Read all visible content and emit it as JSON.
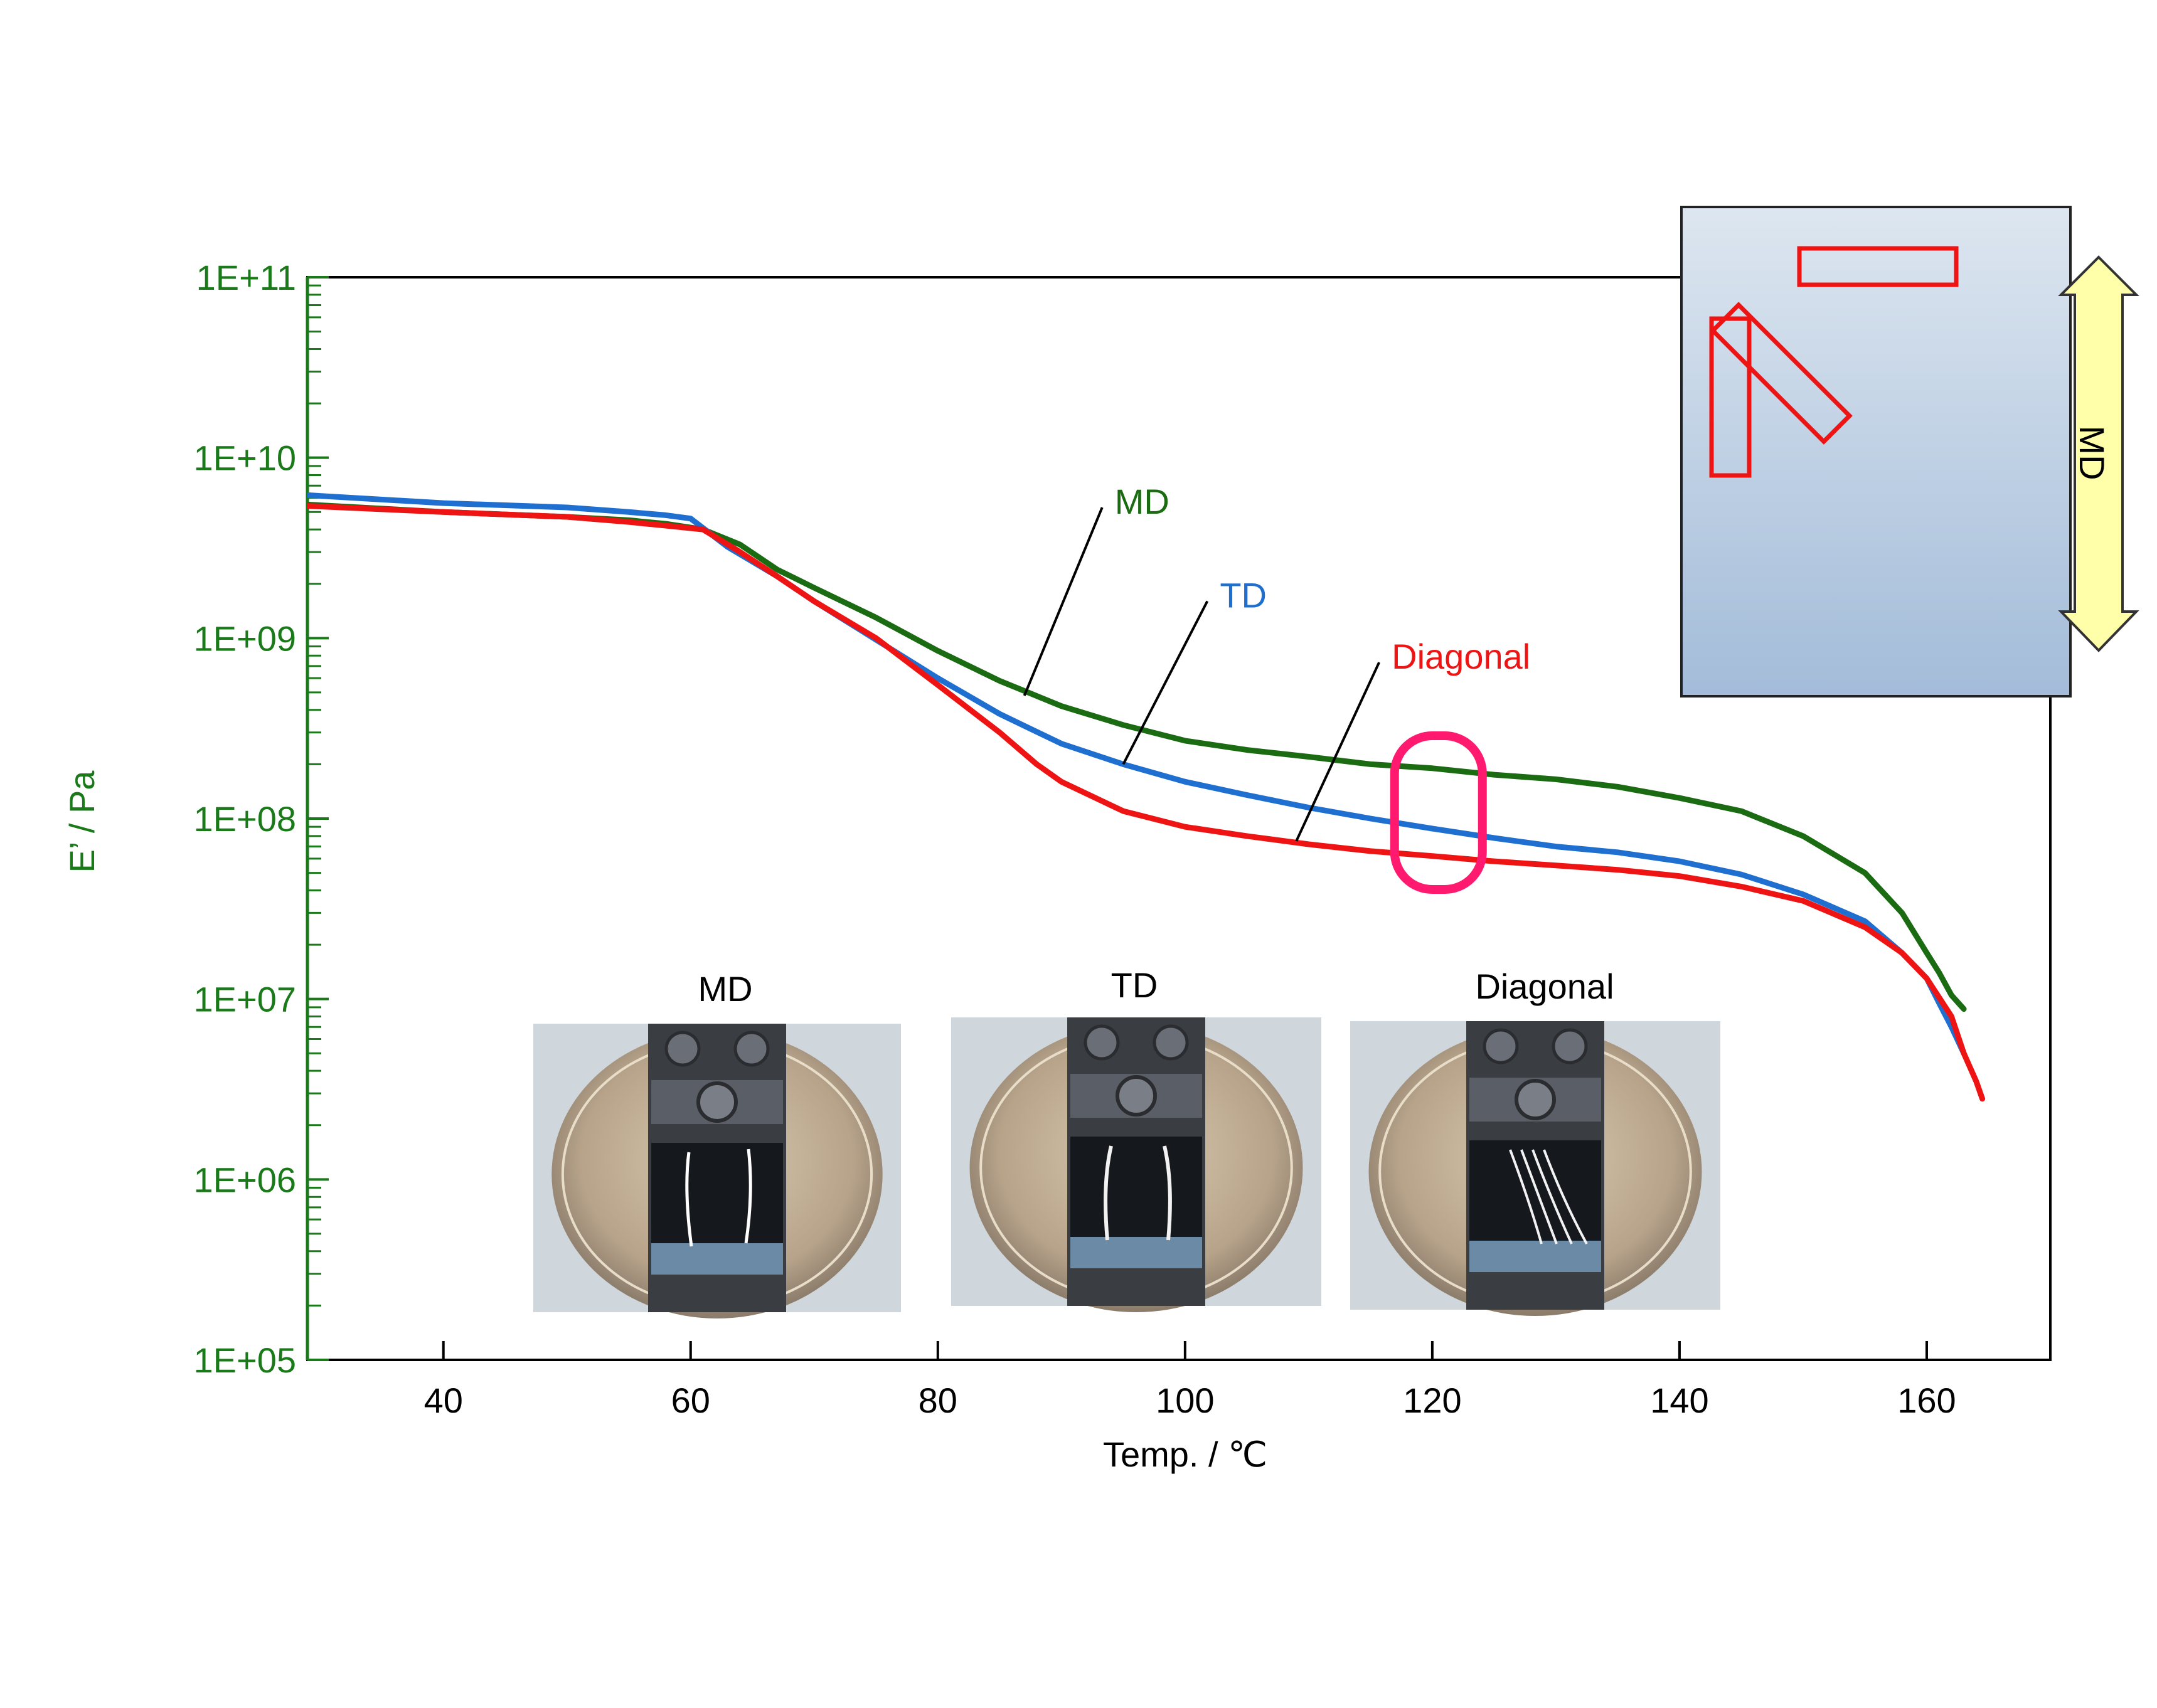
{
  "chart_data": {
    "type": "line",
    "xlabel": "Temp. / ℃",
    "ylabel": "E’ / Pa",
    "xlim": [
      29,
      170
    ],
    "ylim": [
      100000,
      100000000000
    ],
    "y_scale": "log",
    "x_ticks": [
      40,
      60,
      80,
      100,
      120,
      140,
      160
    ],
    "y_ticks": [
      {
        "value": 100000,
        "label": "1E+05"
      },
      {
        "value": 1000000,
        "label": "1E+06"
      },
      {
        "value": 10000000,
        "label": "1E+07"
      },
      {
        "value": 100000000,
        "label": "1E+08"
      },
      {
        "value": 1000000000,
        "label": "1E+09"
      },
      {
        "value": 10000000000,
        "label": "1E+10"
      },
      {
        "value": 100000000000,
        "label": "1E+11"
      }
    ],
    "grid": false,
    "series": [
      {
        "name": "MD",
        "color": "#1a6b12",
        "points": [
          [
            29,
            5500000000.0
          ],
          [
            40,
            5000000000.0
          ],
          [
            50,
            4700000000.0
          ],
          [
            55,
            4500000000.0
          ],
          [
            58,
            4300000000.0
          ],
          [
            61,
            4000000000.0
          ],
          [
            64,
            3300000000.0
          ],
          [
            67,
            2400000000.0
          ],
          [
            70,
            1900000000.0
          ],
          [
            75,
            1300000000.0
          ],
          [
            80,
            850000000.0
          ],
          [
            85,
            580000000.0
          ],
          [
            90,
            420000000.0
          ],
          [
            95,
            330000000.0
          ],
          [
            100,
            270000000.0
          ],
          [
            105,
            240000000.0
          ],
          [
            110,
            220000000.0
          ],
          [
            115,
            200000000.0
          ],
          [
            120,
            190000000.0
          ],
          [
            125,
            175000000.0
          ],
          [
            130,
            165000000.0
          ],
          [
            135,
            150000000.0
          ],
          [
            140,
            130000000.0
          ],
          [
            145,
            110000000.0
          ],
          [
            150,
            80000000.0
          ],
          [
            155,
            50000000.0
          ],
          [
            158,
            30000000.0
          ],
          [
            160,
            18000000.0
          ],
          [
            161,
            14000000.0
          ],
          [
            162,
            10500000.0
          ],
          [
            163,
            8800000.0
          ]
        ]
      },
      {
        "name": "TD",
        "color": "#1f6fd1",
        "points": [
          [
            29,
            6200000000.0
          ],
          [
            40,
            5600000000.0
          ],
          [
            50,
            5300000000.0
          ],
          [
            55,
            5000000000.0
          ],
          [
            58,
            4800000000.0
          ],
          [
            60,
            4600000000.0
          ],
          [
            63,
            3200000000.0
          ],
          [
            67,
            2200000000.0
          ],
          [
            70,
            1600000000.0
          ],
          [
            75,
            980000000.0
          ],
          [
            80,
            600000000.0
          ],
          [
            85,
            380000000.0
          ],
          [
            90,
            260000000.0
          ],
          [
            95,
            200000000.0
          ],
          [
            100,
            160000000.0
          ],
          [
            105,
            135000000.0
          ],
          [
            110,
            115000000.0
          ],
          [
            115,
            100000000.0
          ],
          [
            120,
            88000000.0
          ],
          [
            125,
            78000000.0
          ],
          [
            130,
            70000000.0
          ],
          [
            135,
            65000000.0
          ],
          [
            140,
            58000000.0
          ],
          [
            145,
            49000000.0
          ],
          [
            150,
            38000000.0
          ],
          [
            155,
            27000000.0
          ],
          [
            158,
            18000000.0
          ],
          [
            160,
            13000000.0
          ],
          [
            161,
            9500000.0
          ],
          [
            162,
            7000000.0
          ],
          [
            163,
            5000000.0
          ]
        ]
      },
      {
        "name": "Diagonal",
        "color": "#ee1414",
        "points": [
          [
            29,
            5400000000.0
          ],
          [
            40,
            5000000000.0
          ],
          [
            50,
            4700000000.0
          ],
          [
            55,
            4400000000.0
          ],
          [
            58,
            4200000000.0
          ],
          [
            61,
            4000000000.0
          ],
          [
            64,
            3000000000.0
          ],
          [
            67,
            2200000000.0
          ],
          [
            70,
            1600000000.0
          ],
          [
            75,
            1000000000.0
          ],
          [
            80,
            550000000.0
          ],
          [
            85,
            300000000.0
          ],
          [
            88,
            200000000.0
          ],
          [
            90,
            160000000.0
          ],
          [
            95,
            110000000.0
          ],
          [
            100,
            90000000.0
          ],
          [
            105,
            80000000.0
          ],
          [
            110,
            72000000.0
          ],
          [
            115,
            66000000.0
          ],
          [
            120,
            62000000.0
          ],
          [
            125,
            58000000.0
          ],
          [
            130,
            55000000.0
          ],
          [
            135,
            52000000.0
          ],
          [
            140,
            48000000.0
          ],
          [
            145,
            42000000.0
          ],
          [
            150,
            35000000.0
          ],
          [
            155,
            25000000.0
          ],
          [
            158,
            18000000.0
          ],
          [
            160,
            13000000.0
          ],
          [
            162,
            8000000.0
          ],
          [
            163,
            5000000.0
          ],
          [
            164,
            3500000.0
          ],
          [
            164.5,
            2800000.0
          ]
        ]
      }
    ],
    "series_labels": [
      {
        "series": "MD",
        "text": "MD",
        "anchor_x": 87,
        "anchor_y": 480000000.0
      },
      {
        "series": "TD",
        "text": "TD",
        "anchor_x": 95,
        "anchor_y": 200000000.0
      },
      {
        "series": "Diagonal",
        "text": "Diagonal",
        "anchor_x": 109,
        "anchor_y": 75000000.0
      }
    ],
    "highlight": {
      "x": 120.5,
      "color": "#ff1a70"
    }
  },
  "photos": {
    "labels": [
      "MD",
      "TD",
      "Diagonal"
    ]
  },
  "inset": {
    "arrow_label": "MD",
    "colors": {
      "panel_top": "#dde6f0",
      "panel_bottom": "#a3bcd9",
      "arrow_fill": "#ffffaa",
      "strip": "#ee1414"
    }
  },
  "colors": {
    "y_axis": "#1a7a1a",
    "frame": "#000000"
  }
}
